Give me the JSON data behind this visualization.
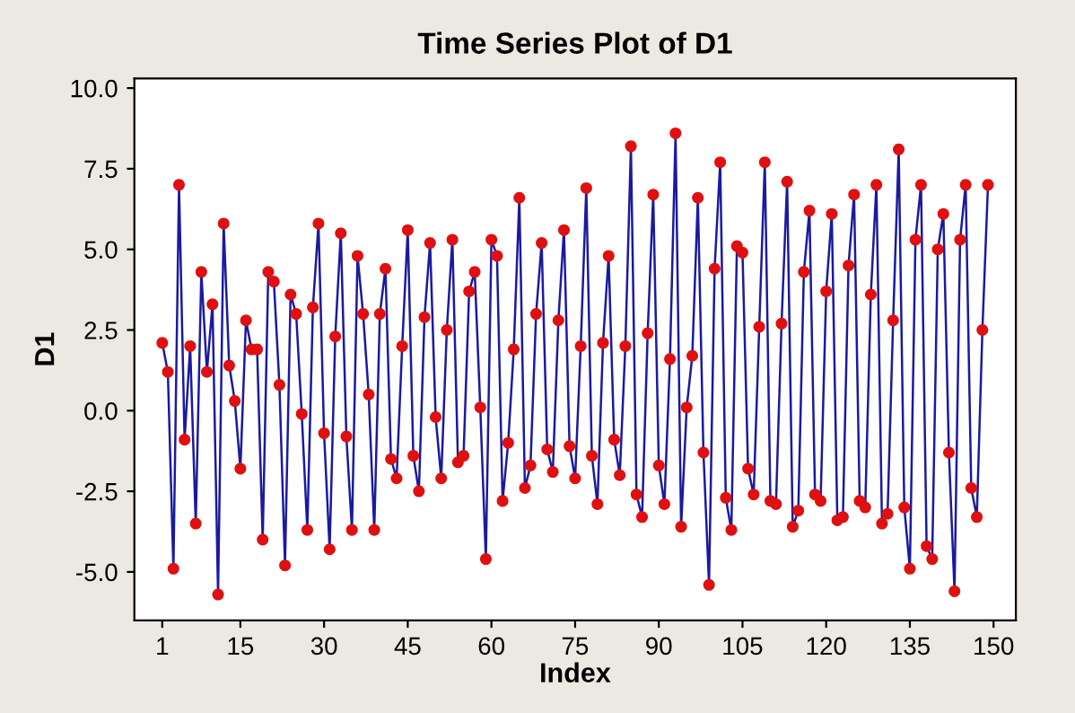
{
  "chart_data": {
    "type": "line",
    "title": "Time Series Plot of D1",
    "xlabel": "Index",
    "ylabel": "D1",
    "xlim": [
      -4,
      154
    ],
    "xticks": [
      1,
      15,
      30,
      45,
      60,
      75,
      90,
      105,
      120,
      135,
      150
    ],
    "ylim": [
      -6.5,
      10.3
    ],
    "yticks": [
      {
        "value": -5,
        "label": "-5.0"
      },
      {
        "value": -2.5,
        "label": "-2.5"
      },
      {
        "value": 0,
        "label": "0.0"
      },
      {
        "value": 2.5,
        "label": "2.5"
      },
      {
        "value": 5,
        "label": "5.0"
      },
      {
        "value": 7.5,
        "label": "7.5"
      },
      {
        "value": 10,
        "label": "10.0"
      }
    ],
    "marker": "circle",
    "grid": false,
    "series": [
      {
        "color": "#1a1aa0",
        "colors": [
          "#e01010",
          "#e01010",
          "#e01010",
          "#e01010",
          "#e01010",
          "#e01010",
          "#e01010",
          "#e01010",
          "#e01010",
          "#e01010",
          "#e01010",
          "#e01010",
          "#e01010",
          "#e01010",
          "#e01010",
          "#e01010",
          "#e01010",
          "#e01010",
          "#e01010",
          "#e01010",
          "#e01010",
          "#e01010",
          "#e01010",
          "#e01010",
          "#e01010",
          "#e01010",
          "#e01010",
          "#e01010",
          "#e01010",
          "#e01010",
          "#e01010",
          "#e01010",
          "#e01010",
          "#e01010",
          "#e01010",
          "#e01010",
          "#e01010",
          "#e01010",
          "#e01010",
          "#e01010",
          "#e01010",
          "#e01010",
          "#e01010",
          "#e01010",
          "#e01010",
          "#e01010",
          "#e01010",
          "#e01010",
          "#e01010",
          "#e01010",
          "#e01010",
          "#e01010",
          "#e01010",
          "#e01010",
          "#e01010",
          "#e01010",
          "#e01010",
          "#e01010",
          "#e01010",
          "#e01010",
          "#e01010",
          "#e01010",
          "#e01010",
          "#e01010",
          "#e01010",
          "#e01010",
          "#e01010",
          "#e01010",
          "#e01010",
          "#e01010",
          "#e01010",
          "#e01010",
          "#e01010",
          "#e01010",
          "#e01010",
          "#e01010",
          "#e01010",
          "#e01010",
          "#e01010",
          "#e01010",
          "#e01010",
          "#e01010",
          "#e01010",
          "#e01010",
          "#e01010",
          "#e01010",
          "#e01010",
          "#e01010",
          "#e01010",
          "#e01010",
          "#e01010",
          "#e01010",
          "#e01010",
          "#e01010",
          "#e01010",
          "#e01010",
          "#e01010",
          "#e01010",
          "#e01010",
          "#e01010",
          "#e01010",
          "#e01010",
          "#e01010",
          "#e01010",
          "#e01010",
          "#e01010",
          "#e01010",
          "#e01010",
          "#e01010",
          "#e01010",
          "#e01010",
          "#e01010",
          "#e01010",
          "#e01010",
          "#e01010",
          "#e01010",
          "#e01010",
          "#e01010",
          "#e01010",
          "#e01010",
          "#e01010",
          "#e01010",
          "#e01010",
          "#e01010",
          "#e01010",
          "#e01010",
          "#e01010",
          "#e01010",
          "#e01010",
          "#e01010",
          "#e01010",
          "#e01010",
          "#e01010",
          "#e01010",
          "#e01010",
          "#e01010",
          "#e01010",
          "#e01010",
          "#e01010",
          "#e01010",
          "#e01010",
          "#e01010",
          "#e01010",
          "#e01010",
          "#e01010",
          "#e01010",
          "#e01010",
          "#e01010",
          "#e01010"
        ],
        "x": [
          1,
          2,
          3,
          4,
          5,
          6,
          7,
          8,
          9,
          10,
          11,
          12,
          13,
          14,
          15,
          16,
          17,
          18,
          19,
          20,
          21,
          22,
          23,
          24,
          25,
          26,
          27,
          28,
          29,
          30,
          31,
          32,
          33,
          34,
          35,
          36,
          37,
          38,
          39,
          40,
          41,
          42,
          43,
          44,
          45,
          46,
          47,
          48,
          49,
          50,
          51,
          52,
          53,
          54,
          55,
          56,
          57,
          58,
          59,
          60,
          61,
          62,
          63,
          64,
          65,
          66,
          67,
          68,
          69,
          70,
          71,
          72,
          73,
          74,
          75,
          76,
          77,
          78,
          79,
          80,
          81,
          82,
          83,
          84,
          85,
          86,
          87,
          88,
          89,
          90,
          91,
          92,
          93,
          94,
          95,
          96,
          97,
          98,
          99,
          100,
          101,
          102,
          103,
          104,
          105,
          106,
          107,
          108,
          109,
          110,
          111,
          112,
          113,
          114,
          115,
          116,
          117,
          118,
          119,
          120,
          121,
          122,
          123,
          124,
          125,
          126,
          127,
          128,
          129,
          130,
          131,
          132,
          133,
          134,
          135,
          136,
          137,
          138,
          139,
          140,
          141,
          142,
          143,
          144,
          145,
          146,
          147,
          148,
          149
        ],
        "values": [
          2.1,
          1.2,
          -4.9,
          7.0,
          -0.9,
          2.0,
          -3.5,
          4.3,
          1.2,
          3.3,
          -5.7,
          5.8,
          1.4,
          0.3,
          -1.8,
          2.8,
          1.9,
          1.9,
          -4.0,
          4.3,
          4.0,
          0.8,
          -4.8,
          3.6,
          3.0,
          -0.1,
          -3.7,
          3.2,
          5.8,
          -0.7,
          -4.3,
          2.3,
          5.5,
          -0.8,
          -3.7,
          4.8,
          3.0,
          0.5,
          -3.7,
          3.0,
          4.4,
          -1.5,
          -2.1,
          2.0,
          5.6,
          -1.4,
          -2.5,
          2.9,
          5.2,
          -0.2,
          -2.1,
          2.5,
          5.3,
          -1.6,
          -1.4,
          3.7,
          4.3,
          0.1,
          -4.6,
          5.3,
          4.8,
          -2.8,
          -1.0,
          1.9,
          6.6,
          -2.4,
          -1.7,
          3.0,
          5.2,
          -1.2,
          -1.9,
          2.8,
          5.6,
          -1.1,
          -2.1,
          2.0,
          6.9,
          -1.4,
          -2.9,
          2.1,
          4.8,
          -0.9,
          -2.0,
          2.0,
          8.2,
          -2.6,
          -3.3,
          2.4,
          6.7,
          -1.7,
          -2.9,
          1.6,
          8.6,
          -3.6,
          0.1,
          1.7,
          6.6,
          -1.3,
          -5.4,
          4.4,
          7.7,
          -2.7,
          -3.7,
          5.1,
          4.9,
          -1.8,
          -2.6,
          2.6,
          7.7,
          -2.8,
          -2.9,
          2.7,
          7.1,
          -3.6,
          -3.1,
          4.3,
          6.2,
          -2.6,
          -2.8,
          3.7,
          6.1,
          -3.4,
          -3.3,
          4.5,
          6.7,
          -2.8,
          -3.0,
          3.6,
          7.0,
          -3.5,
          -3.2,
          2.8,
          8.1,
          -3.0,
          -4.9,
          5.3,
          7.0,
          -4.2,
          -4.6,
          5.0,
          6.1,
          -1.3,
          -5.6,
          5.3,
          7.0,
          -2.4,
          -3.3,
          2.5,
          7.0
        ]
      }
    ]
  }
}
